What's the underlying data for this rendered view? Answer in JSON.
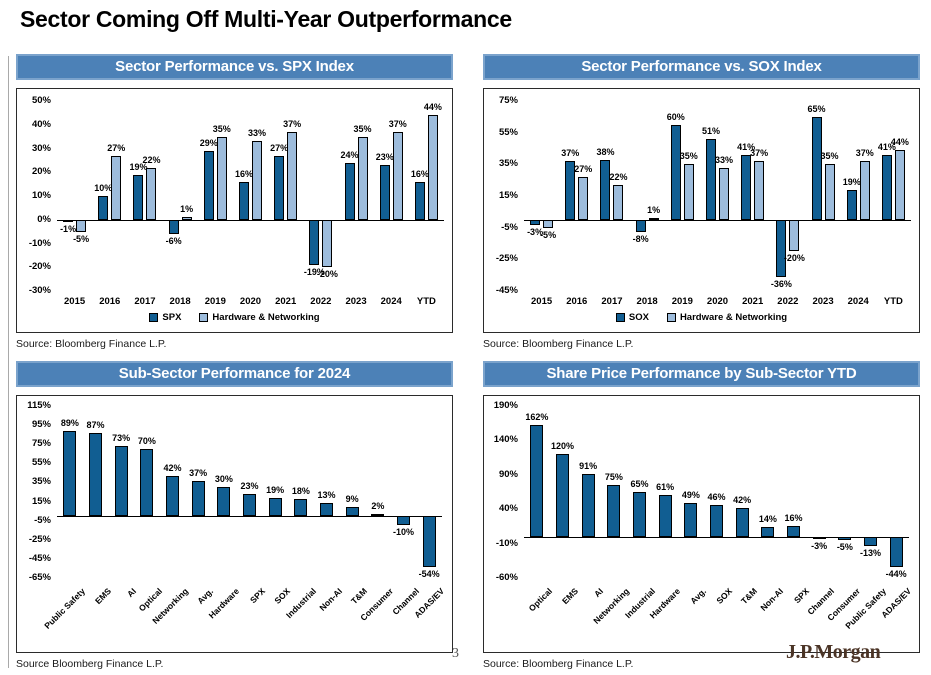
{
  "page": {
    "title": "Sector Coming Off Multi-Year Outperformance",
    "page_number": "3",
    "brand": "J.P.Morgan"
  },
  "sources": {
    "q1": "Source: Bloomberg Finance L.P.",
    "q2": "Source: Bloomberg Finance L.P.",
    "q3": "Source Bloomberg Finance L.P.",
    "q4": "Source: Bloomberg Finance L.P."
  },
  "colors": {
    "header_bg": "#4c81b7",
    "header_border": "#7ba3cc",
    "series_dark": "#115e92",
    "series_light": "#9dbcdc",
    "bar_border": "#000000",
    "axis_line": "#000000",
    "brand_color": "#4b3426",
    "page_number_color": "#555555"
  },
  "chart_data": [
    {
      "type": "bar",
      "title": "Sector Performance vs. SPX Index",
      "categories": [
        "2015",
        "2016",
        "2017",
        "2018",
        "2019",
        "2020",
        "2021",
        "2022",
        "2023",
        "2024",
        "YTD"
      ],
      "series": [
        {
          "name": "SPX",
          "values": [
            -1,
            10,
            19,
            -6,
            29,
            16,
            27,
            -19,
            24,
            23,
            16
          ]
        },
        {
          "name": "Hardware & Networking",
          "values": [
            -5,
            27,
            22,
            1,
            35,
            33,
            37,
            -20,
            35,
            37,
            44
          ]
        }
      ],
      "ylim": [
        -30,
        50
      ],
      "yticks": [
        50,
        40,
        30,
        20,
        10,
        0,
        -10,
        -20,
        -30
      ],
      "value_suffix": "%",
      "grid": false,
      "legend_position": "bottom"
    },
    {
      "type": "bar",
      "title": "Sector Performance vs. SOX Index",
      "categories": [
        "2015",
        "2016",
        "2017",
        "2018",
        "2019",
        "2020",
        "2021",
        "2022",
        "2023",
        "2024",
        "YTD"
      ],
      "series": [
        {
          "name": "SOX",
          "values": [
            -3,
            37,
            38,
            -8,
            60,
            51,
            41,
            -36,
            65,
            19,
            41
          ]
        },
        {
          "name": "Hardware & Networking",
          "values": [
            -5,
            27,
            22,
            1,
            35,
            33,
            37,
            -20,
            35,
            37,
            44
          ]
        }
      ],
      "ylim": [
        -45,
        75
      ],
      "yticks": [
        75,
        55,
        35,
        15,
        -5,
        -25,
        -45
      ],
      "value_suffix": "%",
      "grid": false,
      "legend_position": "bottom"
    },
    {
      "type": "bar",
      "title": "Sub-Sector Performance for 2024",
      "categories": [
        "Public Safety",
        "EMS",
        "AI",
        "Optical",
        "Networking",
        "Avg.",
        "Hardware",
        "SPX",
        "SOX",
        "Industrial",
        "Non-AI",
        "T&M",
        "Consumer",
        "Channel",
        "ADAS/EV"
      ],
      "values": [
        89,
        87,
        73,
        70,
        42,
        37,
        30,
        23,
        19,
        18,
        13,
        9,
        2,
        -10,
        -54
      ],
      "ylim": [
        -65,
        115
      ],
      "yticks": [
        115,
        95,
        75,
        55,
        35,
        15,
        -5,
        -25,
        -45,
        -65
      ],
      "value_suffix": "%",
      "grid": false
    },
    {
      "type": "bar",
      "title": "Share Price Performance by Sub-Sector YTD",
      "categories": [
        "Optical",
        "EMS",
        "AI",
        "Networking",
        "Industrial",
        "Hardware",
        "Avg.",
        "SOX",
        "T&M",
        "Non-AI",
        "SPX",
        "Channel",
        "Consumer",
        "Public Safety",
        "ADAS/EV"
      ],
      "values": [
        162,
        120,
        91,
        75,
        65,
        61,
        49,
        46,
        42,
        14,
        16,
        -3,
        -5,
        -13,
        -44
      ],
      "ylim": [
        -60,
        190
      ],
      "yticks": [
        190,
        140,
        90,
        40,
        -10,
        -60
      ],
      "value_suffix": "%",
      "grid": false
    }
  ]
}
